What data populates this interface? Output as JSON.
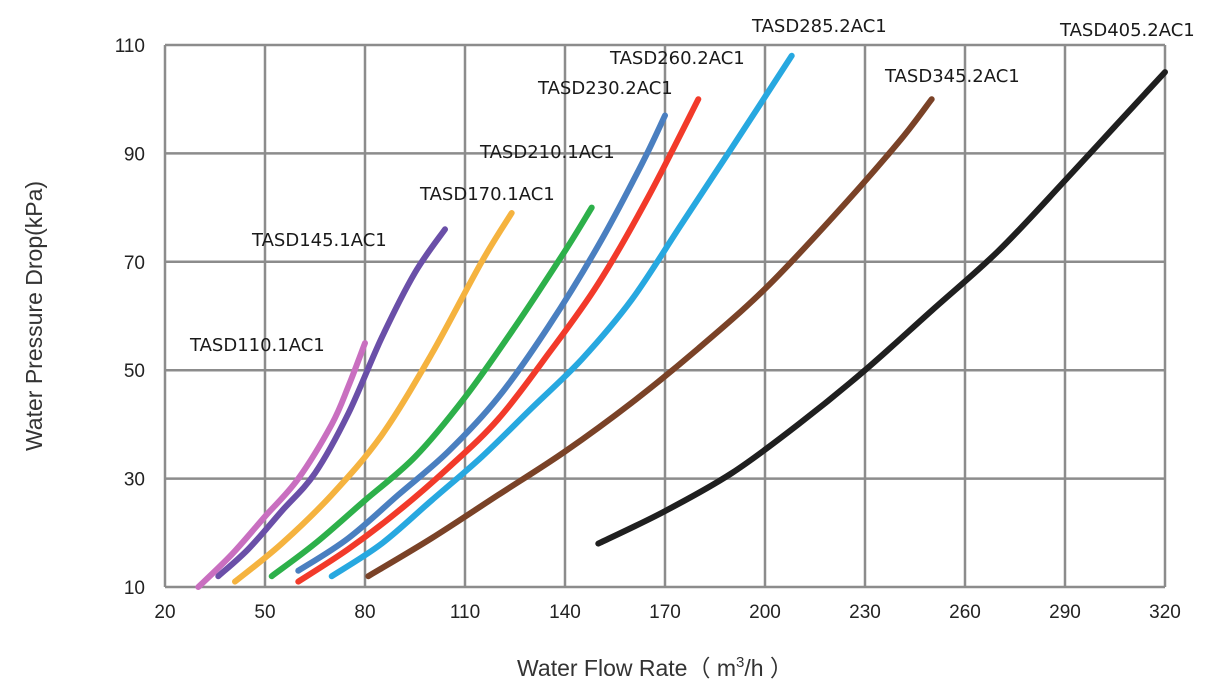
{
  "chart_data": {
    "type": "line",
    "title": "",
    "xlabel_main": "Water Flow Rate（ m",
    "xlabel_sup": "3",
    "xlabel_tail": "/h ）",
    "ylabel": "Water Pressure Drop(kPa)",
    "xlim": [
      20,
      320
    ],
    "ylim": [
      10,
      110
    ],
    "x_ticks": [
      20,
      50,
      80,
      110,
      140,
      170,
      200,
      230,
      260,
      290,
      320
    ],
    "y_ticks": [
      10,
      30,
      50,
      70,
      90,
      110
    ],
    "grid": true,
    "legend": "inline labels",
    "series": [
      {
        "name": "TASD110.1AC1",
        "color": "#c96fc0",
        "points": [
          [
            30,
            10
          ],
          [
            40,
            16
          ],
          [
            50,
            23
          ],
          [
            60,
            30
          ],
          [
            70,
            40
          ],
          [
            75,
            47
          ],
          [
            80,
            55
          ]
        ]
      },
      {
        "name": "TASD145.1AC1",
        "color": "#6a4fa8",
        "points": [
          [
            36,
            12
          ],
          [
            45,
            17
          ],
          [
            55,
            24
          ],
          [
            65,
            31
          ],
          [
            75,
            42
          ],
          [
            85,
            56
          ],
          [
            95,
            68
          ],
          [
            104,
            76
          ]
        ]
      },
      {
        "name": "TASD170.1AC1",
        "color": "#f5b33f",
        "points": [
          [
            41,
            11
          ],
          [
            55,
            18
          ],
          [
            70,
            27
          ],
          [
            85,
            38
          ],
          [
            100,
            53
          ],
          [
            115,
            70
          ],
          [
            124,
            79
          ]
        ]
      },
      {
        "name": "TASD210.1AC1",
        "color": "#2db04a",
        "points": [
          [
            52,
            12
          ],
          [
            65,
            18
          ],
          [
            80,
            26
          ],
          [
            95,
            34
          ],
          [
            110,
            45
          ],
          [
            125,
            58
          ],
          [
            140,
            72
          ],
          [
            148,
            80
          ]
        ]
      },
      {
        "name": "TASD230.2AC1",
        "color": "#4a7fc0",
        "points": [
          [
            60,
            13
          ],
          [
            75,
            19
          ],
          [
            90,
            27
          ],
          [
            105,
            35
          ],
          [
            120,
            45
          ],
          [
            135,
            58
          ],
          [
            150,
            73
          ],
          [
            163,
            88
          ],
          [
            170,
            97
          ]
        ]
      },
      {
        "name": "TASD260.2AC1",
        "color": "#f23a2a",
        "points": [
          [
            60,
            11
          ],
          [
            75,
            17
          ],
          [
            90,
            24
          ],
          [
            105,
            32
          ],
          [
            120,
            41
          ],
          [
            135,
            53
          ],
          [
            150,
            66
          ],
          [
            165,
            82
          ],
          [
            180,
            100
          ]
        ]
      },
      {
        "name": "TASD285.2AC1",
        "color": "#27a8e0",
        "points": [
          [
            70,
            12
          ],
          [
            85,
            18
          ],
          [
            100,
            26
          ],
          [
            115,
            34
          ],
          [
            130,
            43
          ],
          [
            145,
            52
          ],
          [
            160,
            63
          ],
          [
            175,
            77
          ],
          [
            190,
            91
          ],
          [
            208,
            108
          ]
        ]
      },
      {
        "name": "TASD345.2AC1",
        "color": "#7a4227",
        "points": [
          [
            81,
            12
          ],
          [
            100,
            19
          ],
          [
            120,
            27
          ],
          [
            140,
            35
          ],
          [
            160,
            44
          ],
          [
            180,
            54
          ],
          [
            200,
            65
          ],
          [
            220,
            78
          ],
          [
            240,
            92
          ],
          [
            250,
            100
          ]
        ]
      },
      {
        "name": "TASD405.2AC1",
        "color": "#1f1f1f",
        "points": [
          [
            150,
            18
          ],
          [
            170,
            24
          ],
          [
            190,
            31
          ],
          [
            210,
            40
          ],
          [
            230,
            50
          ],
          [
            250,
            61
          ],
          [
            270,
            72
          ],
          [
            290,
            85
          ],
          [
            305,
            95
          ],
          [
            320,
            105
          ]
        ]
      }
    ]
  }
}
